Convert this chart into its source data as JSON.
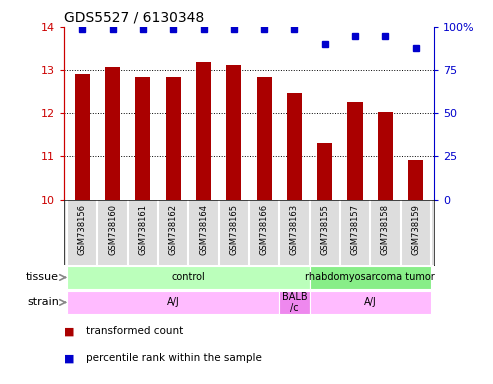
{
  "title": "GDS5527 / 6130348",
  "samples": [
    "GSM738156",
    "GSM738160",
    "GSM738161",
    "GSM738162",
    "GSM738164",
    "GSM738165",
    "GSM738166",
    "GSM738163",
    "GSM738155",
    "GSM738157",
    "GSM738158",
    "GSM738159"
  ],
  "bar_values": [
    12.92,
    13.07,
    12.83,
    12.83,
    13.18,
    13.12,
    12.83,
    12.47,
    11.32,
    12.27,
    12.02,
    10.92
  ],
  "percentile_values": [
    99,
    99,
    99,
    99,
    99,
    99,
    99,
    99,
    90,
    95,
    95,
    88
  ],
  "bar_color": "#aa0000",
  "dot_color": "#0000cc",
  "ylim_left": [
    10,
    14
  ],
  "ylim_right": [
    0,
    100
  ],
  "yticks_left": [
    10,
    11,
    12,
    13,
    14
  ],
  "yticks_right": [
    0,
    25,
    50,
    75,
    100
  ],
  "tissue_groups": [
    {
      "label": "control",
      "start": 0,
      "end": 8,
      "color": "#bbffbb"
    },
    {
      "label": "rhabdomyosarcoma tumor",
      "start": 8,
      "end": 12,
      "color": "#88ee88"
    }
  ],
  "strain_groups": [
    {
      "label": "A/J",
      "start": 0,
      "end": 7,
      "color": "#ffbbff"
    },
    {
      "label": "BALB\n/c",
      "start": 7,
      "end": 8,
      "color": "#ee88ee"
    },
    {
      "label": "A/J",
      "start": 8,
      "end": 12,
      "color": "#ffbbff"
    }
  ],
  "tissue_label": "tissue",
  "strain_label": "strain",
  "legend_bar_label": "transformed count",
  "legend_dot_label": "percentile rank within the sample",
  "left_axis_color": "#cc0000",
  "right_axis_color": "#0000cc",
  "sample_box_color": "#cccccc",
  "label_area_color": "#dddddd"
}
